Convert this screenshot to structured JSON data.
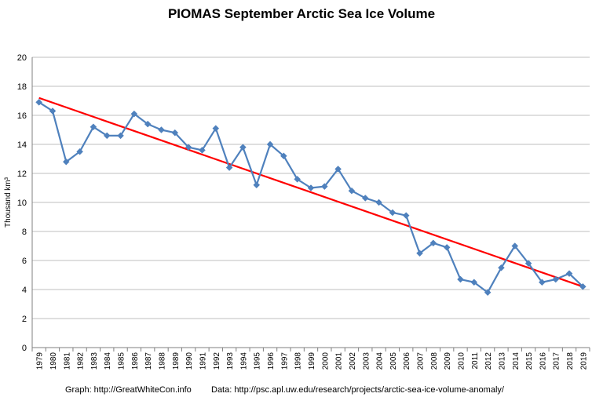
{
  "chart_data": {
    "type": "line",
    "title": "PIOMAS September Arctic Sea Ice Volume",
    "xlabel": "",
    "ylabel": "Thousand km³",
    "ylim": [
      0,
      20
    ],
    "yticks": [
      0,
      2,
      4,
      6,
      8,
      10,
      12,
      14,
      16,
      18,
      20
    ],
    "grid": true,
    "legend": "none",
    "categories": [
      "1979",
      "1980",
      "1981",
      "1982",
      "1983",
      "1984",
      "1985",
      "1986",
      "1987",
      "1988",
      "1989",
      "1990",
      "1991",
      "1992",
      "1993",
      "1994",
      "1995",
      "1996",
      "1997",
      "1998",
      "1999",
      "2000",
      "2001",
      "2002",
      "2003",
      "2004",
      "2005",
      "2006",
      "2007",
      "2008",
      "2009",
      "2010",
      "2011",
      "2012",
      "2013",
      "2014",
      "2015",
      "2016",
      "2017",
      "2018",
      "2019"
    ],
    "series": [
      {
        "color": "#4f81bd",
        "marker": "diamond",
        "values": [
          16.9,
          16.3,
          12.8,
          13.5,
          15.2,
          14.6,
          14.6,
          16.1,
          15.4,
          15.0,
          14.8,
          13.8,
          13.6,
          15.1,
          12.4,
          13.8,
          11.2,
          14.0,
          13.2,
          11.6,
          11.0,
          11.1,
          12.3,
          10.8,
          10.3,
          10.0,
          9.3,
          9.1,
          6.5,
          7.2,
          6.9,
          4.7,
          4.5,
          3.8,
          5.5,
          7.0,
          5.8,
          4.5,
          4.7,
          5.1,
          4.2
        ]
      },
      {
        "color": "#ff0000",
        "trendline": true,
        "values_endpoints": [
          17.2,
          4.2
        ]
      }
    ],
    "gridline_color": "#bfbfbf"
  },
  "footer": {
    "graph": "Graph: http://GreatWhiteCon.info",
    "data": "Data: http://psc.apl.uw.edu/research/projects/arctic-sea-ice-volume-anomaly/"
  }
}
